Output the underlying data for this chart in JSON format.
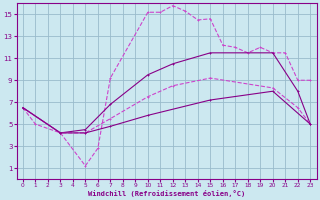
{
  "bg_color": "#cce8f0",
  "grid_color": "#99bbcc",
  "line_color": "#880088",
  "line_color2": "#cc44cc",
  "xlim": [
    -0.5,
    23.5
  ],
  "ylim": [
    0,
    16
  ],
  "xticks": [
    0,
    1,
    2,
    3,
    4,
    5,
    6,
    7,
    8,
    9,
    10,
    11,
    12,
    13,
    14,
    15,
    16,
    17,
    18,
    19,
    20,
    21,
    22,
    23
  ],
  "yticks": [
    1,
    3,
    5,
    7,
    9,
    11,
    13,
    15
  ],
  "xlabel": "Windchill (Refroidissement éolien,°C)",
  "line1_x": [
    0,
    1,
    3,
    5,
    6,
    7,
    10,
    11,
    12,
    13,
    14,
    15,
    16,
    17,
    18,
    19,
    20,
    21,
    22,
    23
  ],
  "line1_y": [
    6.5,
    5.0,
    4.2,
    1.2,
    2.8,
    9.2,
    15.2,
    15.2,
    15.8,
    15.3,
    14.5,
    14.6,
    12.2,
    12.0,
    11.5,
    12.0,
    11.5,
    11.5,
    9.0,
    9.0
  ],
  "line2_x": [
    0,
    3,
    5,
    7,
    10,
    12,
    15,
    20,
    22,
    23
  ],
  "line2_y": [
    6.5,
    4.2,
    4.5,
    6.8,
    9.5,
    10.5,
    11.5,
    11.5,
    8.0,
    5.0
  ],
  "line3_x": [
    0,
    3,
    5,
    7,
    10,
    12,
    15,
    20,
    22,
    23
  ],
  "line3_y": [
    6.5,
    4.2,
    4.2,
    5.5,
    7.5,
    8.5,
    9.2,
    8.3,
    6.5,
    5.0
  ],
  "line4_x": [
    0,
    3,
    5,
    7,
    10,
    15,
    20,
    23
  ],
  "line4_y": [
    6.5,
    4.2,
    4.2,
    4.8,
    5.8,
    7.2,
    8.0,
    5.0
  ]
}
